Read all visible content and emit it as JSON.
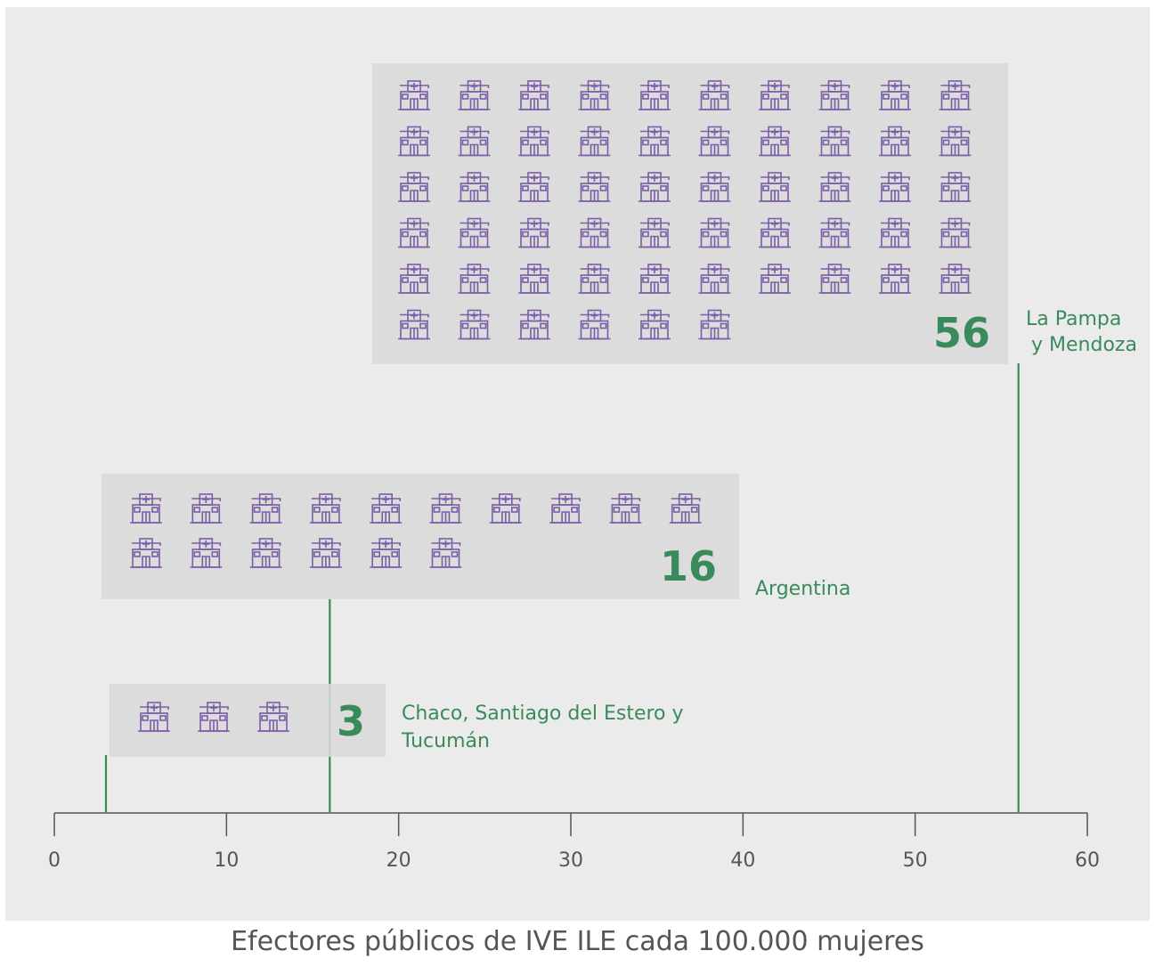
{
  "chart_data": {
    "type": "bar",
    "xlabel": "Efectores públicos de IVE ILE cada 100.000 mujeres",
    "xlim": [
      0,
      60
    ],
    "xticks": [
      0,
      10,
      20,
      30,
      40,
      50,
      60
    ],
    "series": [
      {
        "label": "La Pampa\ny Mendoza",
        "value": 56,
        "value_label": "56"
      },
      {
        "label": "Argentina",
        "value": 16,
        "value_label": "16"
      },
      {
        "label": "Chaco, Santiago del Estero y\nTucumán",
        "value": 3,
        "value_label": "3"
      }
    ],
    "icon": "hospital-icon",
    "grid": false
  },
  "colors": {
    "background": "#ebebeb",
    "panel": "#d9d9d9",
    "accent_green": "#3a8a5c",
    "icon_purple": "#7a5ea6",
    "axis": "#555555"
  }
}
